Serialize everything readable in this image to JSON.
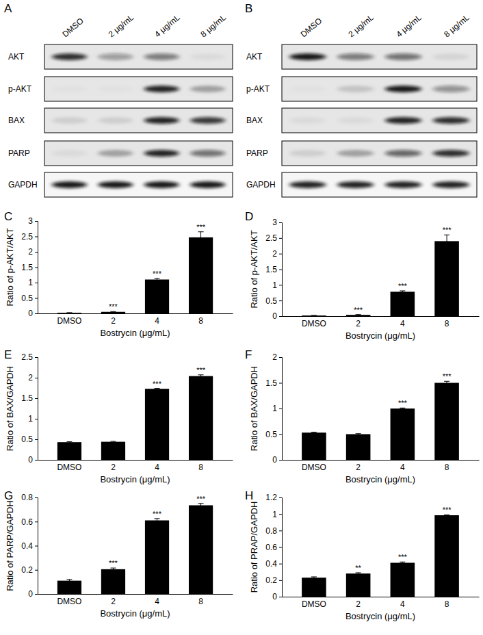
{
  "chart_data": [
    {
      "type": "blot",
      "title": "A",
      "categories": [
        "DMSO",
        "2 μg/mL",
        "4 μg/mL",
        "8 μg/mL"
      ],
      "series": [
        {
          "name": "AKT",
          "values": [
            0.85,
            0.35,
            0.5,
            0.05
          ]
        },
        {
          "name": "p-AKT",
          "values": [
            0.02,
            0.02,
            0.9,
            0.3
          ]
        },
        {
          "name": "BAX",
          "values": [
            0.1,
            0.1,
            0.9,
            0.8
          ]
        },
        {
          "name": "PARP",
          "values": [
            0.05,
            0.3,
            0.9,
            0.55
          ]
        },
        {
          "name": "GAPDH",
          "values": [
            0.95,
            0.95,
            0.95,
            0.95
          ]
        }
      ]
    },
    {
      "type": "blot",
      "title": "B",
      "categories": [
        "DMSO",
        "2 μg/mL",
        "4 μg/mL",
        "8 μg/mL"
      ],
      "series": [
        {
          "name": "AKT",
          "values": [
            0.95,
            0.5,
            0.55,
            0.08
          ]
        },
        {
          "name": "p-AKT",
          "values": [
            0.02,
            0.15,
            0.95,
            0.4
          ]
        },
        {
          "name": "BAX",
          "values": [
            0.05,
            0.05,
            0.9,
            0.85
          ]
        },
        {
          "name": "PARP",
          "values": [
            0.1,
            0.3,
            0.6,
            0.85
          ]
        },
        {
          "name": "GAPDH",
          "values": [
            0.9,
            0.9,
            0.9,
            0.9
          ]
        }
      ]
    },
    {
      "type": "bar",
      "title": "C",
      "x_label": "Bostrycin (μg/mL)",
      "y_label": "Ratio of p-AKT/AKT",
      "categories": [
        "DMSO",
        "2",
        "4",
        "8"
      ],
      "values": [
        0.02,
        0.05,
        1.1,
        2.47
      ],
      "error": [
        0.005,
        0.01,
        0.04,
        0.18
      ],
      "annotations": [
        null,
        "***",
        "***",
        "***"
      ],
      "color": "#000000",
      "ylim": [
        0,
        3
      ],
      "yticks": [
        0,
        0.5,
        1,
        1.5,
        2,
        2.5,
        3
      ],
      "grid": false
    },
    {
      "type": "bar",
      "title": "D",
      "x_label": "Bostrycin (μg/mL)",
      "y_label": "Ratio of p-AKT/AKT",
      "categories": [
        "DMSO",
        "2",
        "4",
        "8"
      ],
      "values": [
        0.02,
        0.04,
        0.78,
        2.4
      ],
      "error": [
        0.005,
        0.01,
        0.03,
        0.2
      ],
      "annotations": [
        null,
        "***",
        "***",
        "***"
      ],
      "color": "#000000",
      "ylim": [
        0,
        3
      ],
      "yticks": [
        0,
        0.5,
        1,
        1.5,
        2,
        2.5,
        3
      ],
      "grid": false
    },
    {
      "type": "bar",
      "title": "E",
      "x_label": "Bostrycin (μg/mL)",
      "y_label": "Ratio of BAX/GAPDH",
      "categories": [
        "DMSO",
        "2",
        "4",
        "8"
      ],
      "values": [
        0.43,
        0.44,
        1.73,
        2.04
      ],
      "error": [
        0.01,
        0.01,
        0.01,
        0.03
      ],
      "annotations": [
        null,
        null,
        "***",
        "***"
      ],
      "color": "#000000",
      "ylim": [
        0,
        2.5
      ],
      "yticks": [
        0,
        0.5,
        1,
        1.5,
        2,
        2.5
      ],
      "grid": false
    },
    {
      "type": "bar",
      "title": "F",
      "x_label": "Bostrycin (μg/mL)",
      "y_label": "Ratio of BAX/GAPDH",
      "categories": [
        "DMSO",
        "2",
        "4",
        "8"
      ],
      "values": [
        0.53,
        0.5,
        1.0,
        1.5
      ],
      "error": [
        0.01,
        0.01,
        0.01,
        0.03
      ],
      "annotations": [
        null,
        null,
        "***",
        "***"
      ],
      "color": "#000000",
      "ylim": [
        0,
        2
      ],
      "yticks": [
        0,
        0.5,
        1,
        1.5,
        2
      ],
      "grid": false
    },
    {
      "type": "bar",
      "title": "G",
      "x_label": "Bostrycin (μg/mL)",
      "y_label": "Ratio of PARP/GAPDH",
      "categories": [
        "DMSO",
        "2",
        "4",
        "8"
      ],
      "values": [
        0.11,
        0.205,
        0.61,
        0.735
      ],
      "error": [
        0.01,
        0.01,
        0.015,
        0.015
      ],
      "annotations": [
        null,
        "***",
        "***",
        "***"
      ],
      "color": "#000000",
      "ylim": [
        0,
        0.8
      ],
      "yticks": [
        0,
        0.2,
        0.4,
        0.6,
        0.8
      ],
      "grid": false
    },
    {
      "type": "bar",
      "title": "H",
      "x_label": "Bostrycin (μg/mL)",
      "y_label": "Ratio of PRAP/GAPDH",
      "categories": [
        "DMSO",
        "2",
        "4",
        "8"
      ],
      "values": [
        0.23,
        0.28,
        0.41,
        0.985
      ],
      "error": [
        0.01,
        0.01,
        0.01,
        0.005
      ],
      "annotations": [
        null,
        "**",
        "***",
        "***"
      ],
      "color": "#000000",
      "ylim": [
        0,
        1.2
      ],
      "yticks": [
        0,
        0.2,
        0.4,
        0.6,
        0.8,
        1,
        1.2
      ],
      "grid": false
    }
  ]
}
